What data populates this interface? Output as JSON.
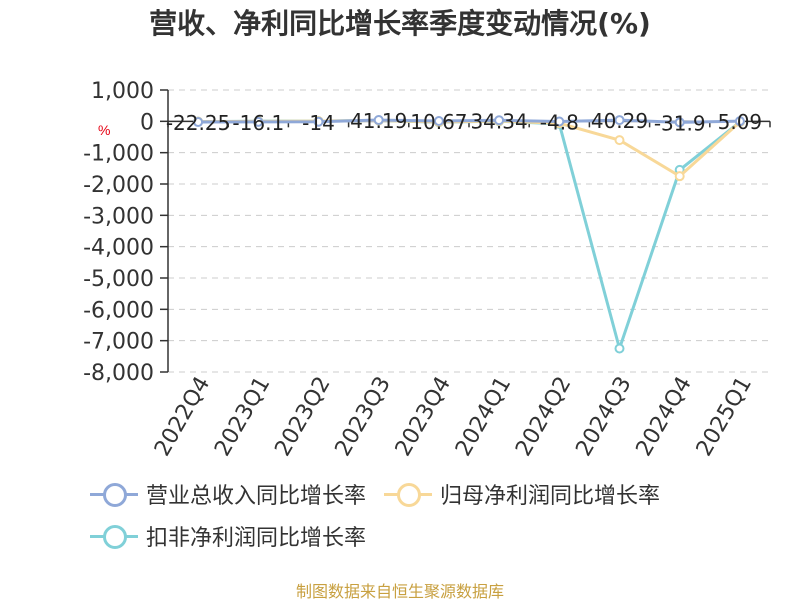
{
  "title": "营收、净利同比增长率季度变动情况(%)",
  "unit_label": "%",
  "source": "制图数据来自恒生聚源数据库",
  "chart_data": {
    "type": "line",
    "title": "营收、净利同比增长率季度变动情况(%)",
    "ylabel": "%",
    "ylim": [
      -8000,
      1000
    ],
    "yticks": [
      1000,
      0,
      -1000,
      -2000,
      -3000,
      -4000,
      -5000,
      -6000,
      -7000,
      -8000
    ],
    "ytick_labels": [
      "1,000",
      "0",
      "-1,000",
      "-2,000",
      "-3,000",
      "-4,000",
      "-5,000",
      "-6,000",
      "-7,000",
      "-8,000"
    ],
    "categories": [
      "2022Q4",
      "2023Q1",
      "2023Q2",
      "2023Q3",
      "2023Q4",
      "2024Q1",
      "2024Q2",
      "2024Q3",
      "2024Q4",
      "2025Q1"
    ],
    "grid": true,
    "legend_position": "bottom",
    "series": [
      {
        "name": "营业总收入同比增长率",
        "color": "#8fa8d8",
        "values": [
          -22.25,
          -16.1,
          -14,
          41.19,
          10.67,
          34.34,
          -4.8,
          40.29,
          -31.9,
          5.09
        ],
        "data_labels": [
          "-22.25",
          "-16.1",
          "-14",
          "41.19",
          "10.67",
          "34.34",
          "-4.8",
          "40.29",
          "-31.9",
          "5.09"
        ]
      },
      {
        "name": "归母净利润同比增长率",
        "color": "#f8d898",
        "values": [
          -10,
          0,
          5,
          30,
          -20,
          10,
          -60,
          -600,
          -1750,
          -20
        ]
      },
      {
        "name": "扣非净利润同比增长率",
        "color": "#80d0d8",
        "values": [
          -10,
          5,
          5,
          30,
          -30,
          5,
          -80,
          -7250,
          -1550,
          -20
        ]
      }
    ]
  }
}
